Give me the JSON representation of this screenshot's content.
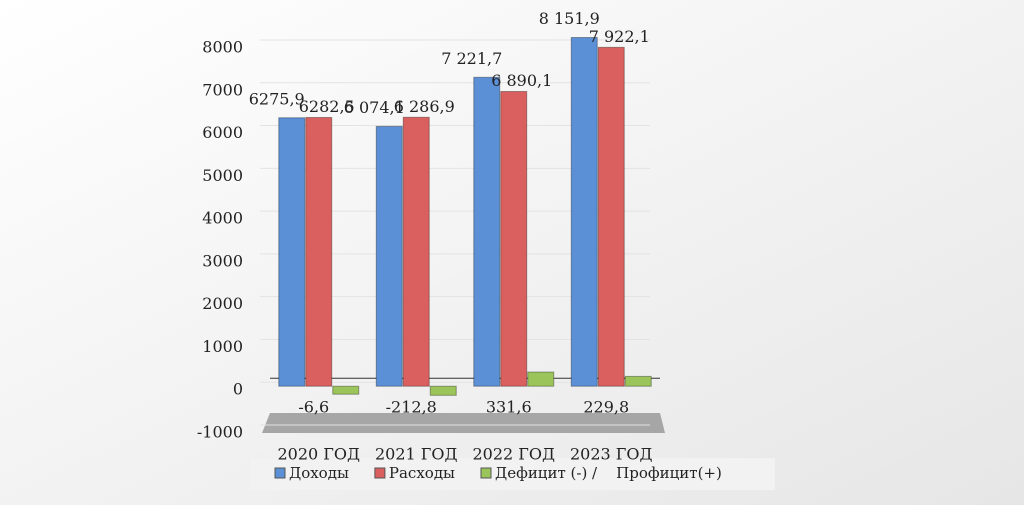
{
  "chart_data": {
    "type": "bar",
    "categories": [
      "2020 ГОД",
      "2021 ГОД",
      "2022 ГОД",
      "2023 ГОД"
    ],
    "series": [
      {
        "name": "Доходы",
        "color": "#5b8fd6",
        "values": [
          6275.9,
          6074.1,
          7221.7,
          8151.9
        ],
        "value_labels": [
          "6275,9",
          "6 074,1",
          "7 221,7",
          "8 151,9"
        ]
      },
      {
        "name": "Расходы",
        "color": "#d9605e",
        "values": [
          6282.5,
          6286.9,
          6890.1,
          7922.1
        ],
        "value_labels": [
          "6282,5",
          "6 286,9",
          "6 890,1",
          "7 922,1"
        ]
      },
      {
        "name": "Дефицит (-) /    Профицит(+)",
        "color": "#9bc45a",
        "values": [
          -6.6,
          -212.8,
          331.6,
          229.8
        ],
        "value_labels": [
          "-6,6",
          "-212,8",
          "331,6",
          "229,8"
        ]
      }
    ],
    "ylim": [
      -1000,
      8000
    ],
    "yticks": [
      -1000,
      0,
      1000,
      2000,
      3000,
      4000,
      5000,
      6000,
      7000,
      8000
    ],
    "grid": true
  }
}
